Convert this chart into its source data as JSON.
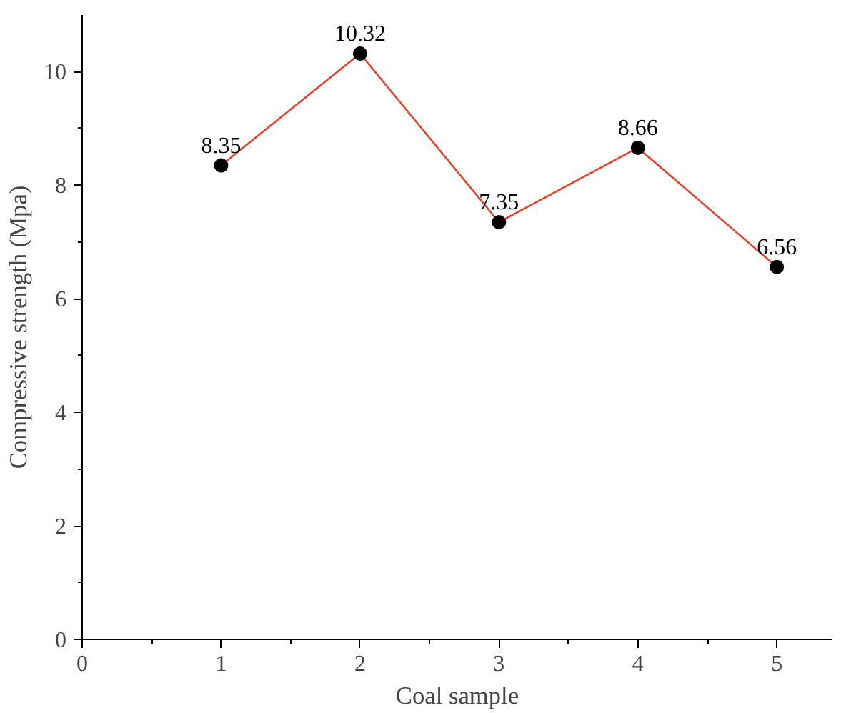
{
  "chart_data": {
    "type": "line",
    "xlabel": "Coal sample",
    "ylabel": "Compressive strength (Mpa)",
    "x": [
      1,
      2,
      3,
      4,
      5
    ],
    "series": [
      {
        "color": "#e8412c",
        "values": [
          8.35,
          10.32,
          7.35,
          8.66,
          6.56
        ]
      }
    ],
    "marker": "circle",
    "line_style": "solid",
    "data_labels": true,
    "grid": false,
    "xlim": [
      0,
      5.4
    ],
    "ylim": [
      0,
      11
    ],
    "xticks": [
      0,
      {
        "value": 0.5,
        "label": null
      },
      1,
      {
        "value": 1.5,
        "label": null
      },
      2,
      {
        "value": 2.5,
        "label": null
      },
      3,
      {
        "value": 3.5,
        "label": null
      },
      4,
      {
        "value": 4.5,
        "label": null
      },
      5
    ],
    "yticks": [
      0,
      {
        "value": 1,
        "label": null
      },
      2,
      {
        "value": 3,
        "label": null
      },
      4,
      {
        "value": 5,
        "label": null
      },
      6,
      {
        "value": 7,
        "label": null
      },
      8,
      {
        "value": 9,
        "label": null
      },
      10
    ]
  }
}
